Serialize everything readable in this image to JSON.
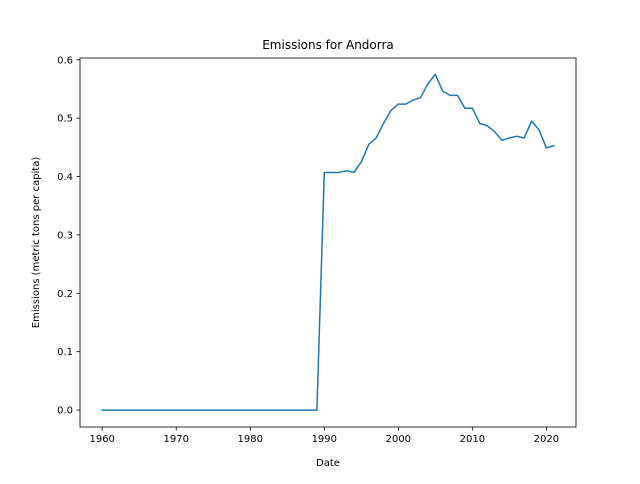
{
  "chart_data": {
    "type": "line",
    "title": "Emissions for Andorra",
    "xlabel": "Date",
    "ylabel": "Emissions (metric tons per capita)",
    "xlim": [
      1957,
      2024
    ],
    "ylim": [
      -0.029,
      0.603
    ],
    "xticks": [
      1960,
      1970,
      1980,
      1990,
      2000,
      2010,
      2020
    ],
    "yticks": [
      0.0,
      0.1,
      0.2,
      0.3,
      0.4,
      0.5,
      0.6
    ],
    "xtick_labels": [
      "1960",
      "1970",
      "1980",
      "1990",
      "2000",
      "2010",
      "2020"
    ],
    "ytick_labels": [
      "0.0",
      "0.1",
      "0.2",
      "0.3",
      "0.4",
      "0.5",
      "0.6"
    ],
    "grid": false,
    "legend": "none",
    "color": "#1f77b4",
    "series": [
      {
        "x": [
          1960,
          1961,
          1962,
          1963,
          1964,
          1965,
          1966,
          1967,
          1968,
          1969,
          1970,
          1971,
          1972,
          1973,
          1974,
          1975,
          1976,
          1977,
          1978,
          1979,
          1980,
          1981,
          1982,
          1983,
          1984,
          1985,
          1986,
          1987,
          1988,
          1989,
          1990,
          1991,
          1992,
          1993,
          1994,
          1995,
          1996,
          1997,
          1998,
          1999,
          2000,
          2001,
          2002,
          2003,
          2004,
          2005,
          2006,
          2007,
          2008,
          2009,
          2010,
          2011,
          2012,
          2013,
          2014,
          2015,
          2016,
          2017,
          2018,
          2019,
          2020,
          2021
        ],
        "y": [
          0,
          0,
          0,
          0,
          0,
          0,
          0,
          0,
          0,
          0,
          0,
          0,
          0,
          0,
          0,
          0,
          0,
          0,
          0,
          0,
          0,
          0,
          0,
          0,
          0,
          0,
          0,
          0,
          0,
          0,
          0.407,
          0.407,
          0.407,
          0.41,
          0.407,
          0.425,
          0.455,
          0.466,
          0.491,
          0.513,
          0.524,
          0.524,
          0.531,
          0.535,
          0.559,
          0.575,
          0.546,
          0.539,
          0.539,
          0.517,
          0.517,
          0.491,
          0.487,
          0.477,
          0.462,
          0.466,
          0.469,
          0.466,
          0.495,
          0.48,
          0.449,
          0.453
        ]
      }
    ]
  }
}
